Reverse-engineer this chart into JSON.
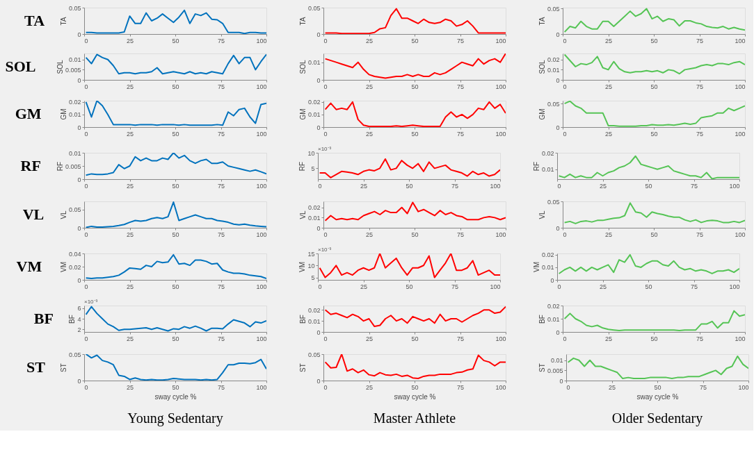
{
  "chart_data": [
    {
      "type": "line",
      "title": "TA",
      "ylabel": "TA",
      "color": "#0072bd",
      "xlim": [
        0,
        100
      ],
      "xticks": [
        0,
        25,
        50,
        75,
        100
      ],
      "ylim": [
        0,
        0.05
      ],
      "yticks": [
        0,
        0.05
      ],
      "x": [
        1,
        4,
        7,
        10,
        13,
        16,
        19,
        22,
        25,
        28,
        31,
        34,
        37,
        40,
        43,
        46,
        49,
        52,
        55,
        58,
        61,
        64,
        67,
        70,
        73,
        76,
        79,
        82,
        85,
        88,
        91,
        94,
        97,
        100
      ],
      "values": [
        0.003,
        0.003,
        0.002,
        0.002,
        0.002,
        0.002,
        0.002,
        0.004,
        0.034,
        0.02,
        0.02,
        0.04,
        0.025,
        0.03,
        0.038,
        0.03,
        0.022,
        0.032,
        0.045,
        0.02,
        0.038,
        0.035,
        0.04,
        0.028,
        0.027,
        0.02,
        0.003,
        0.003,
        0.003,
        0.001,
        0.003,
        0.003,
        0.002,
        0.002
      ]
    },
    {
      "type": "line",
      "ylabel": "TA",
      "color": "#ff0000",
      "xlim": [
        0,
        100
      ],
      "xticks": [
        0,
        25,
        50,
        75,
        100
      ],
      "ylim": [
        0,
        0.05
      ],
      "yticks": [
        0,
        0.05
      ],
      "x": [
        1,
        4,
        7,
        10,
        13,
        16,
        19,
        22,
        25,
        28,
        31,
        34,
        37,
        40,
        43,
        46,
        49,
        52,
        55,
        58,
        61,
        64,
        67,
        70,
        73,
        76,
        79,
        82,
        85,
        88,
        91,
        94,
        97,
        100
      ],
      "values": [
        0.002,
        0.002,
        0.002,
        0.001,
        0.001,
        0.001,
        0.001,
        0.001,
        0.001,
        0.003,
        0.01,
        0.012,
        0.035,
        0.048,
        0.03,
        0.03,
        0.025,
        0.02,
        0.028,
        0.022,
        0.02,
        0.022,
        0.028,
        0.025,
        0.015,
        0.018,
        0.025,
        0.015,
        0.002,
        0.002,
        0.002,
        0.002,
        0.002,
        0.002
      ]
    },
    {
      "type": "line",
      "ylabel": "TA",
      "color": "#55c455",
      "xlim": [
        0,
        100
      ],
      "xticks": [
        0,
        25,
        50,
        75,
        100
      ],
      "ylim": [
        0,
        0.052
      ],
      "yticks": [
        0,
        0.05
      ],
      "x": [
        1,
        4,
        7,
        10,
        13,
        16,
        19,
        22,
        25,
        28,
        31,
        34,
        37,
        40,
        43,
        46,
        49,
        52,
        55,
        58,
        61,
        64,
        67,
        70,
        73,
        76,
        79,
        82,
        85,
        88,
        91,
        94,
        97,
        100
      ],
      "values": [
        0.004,
        0.015,
        0.012,
        0.025,
        0.015,
        0.01,
        0.01,
        0.025,
        0.025,
        0.015,
        0.025,
        0.035,
        0.045,
        0.035,
        0.04,
        0.05,
        0.03,
        0.035,
        0.025,
        0.03,
        0.028,
        0.016,
        0.026,
        0.026,
        0.022,
        0.02,
        0.015,
        0.013,
        0.012,
        0.015,
        0.01,
        0.013,
        0.01,
        0.008
      ]
    },
    {
      "type": "line",
      "title": "SOL",
      "ylabel": "SOL",
      "color": "#0072bd",
      "xlim": [
        0,
        100
      ],
      "xticks": [
        0,
        25,
        50,
        75,
        100
      ],
      "ylim": [
        0,
        0.013
      ],
      "yticks": [
        0,
        0.005,
        0.01
      ],
      "x": [
        1,
        4,
        7,
        10,
        13,
        16,
        19,
        22,
        25,
        28,
        31,
        34,
        37,
        40,
        43,
        46,
        49,
        52,
        55,
        58,
        61,
        64,
        67,
        70,
        73,
        76,
        79,
        82,
        85,
        88,
        91,
        94,
        97,
        100
      ],
      "values": [
        0.011,
        0.008,
        0.0125,
        0.011,
        0.01,
        0.007,
        0.003,
        0.0035,
        0.0035,
        0.003,
        0.0035,
        0.0035,
        0.004,
        0.006,
        0.003,
        0.0035,
        0.004,
        0.0035,
        0.003,
        0.004,
        0.003,
        0.0035,
        0.003,
        0.004,
        0.0035,
        0.003,
        0.008,
        0.012,
        0.008,
        0.011,
        0.011,
        0.005,
        0.009,
        0.0125
      ]
    },
    {
      "type": "line",
      "ylabel": "SOL",
      "color": "#ff0000",
      "xlim": [
        0,
        100
      ],
      "xticks": [
        0,
        25,
        50,
        75,
        100
      ],
      "ylim": [
        0,
        0.015
      ],
      "yticks": [
        0,
        0.01
      ],
      "x": [
        1,
        4,
        7,
        10,
        13,
        16,
        19,
        22,
        25,
        28,
        31,
        34,
        37,
        40,
        43,
        46,
        49,
        52,
        55,
        58,
        61,
        64,
        67,
        70,
        73,
        76,
        79,
        82,
        85,
        88,
        91,
        94,
        97,
        100
      ],
      "values": [
        0.012,
        0.011,
        0.01,
        0.009,
        0.008,
        0.007,
        0.01,
        0.006,
        0.003,
        0.002,
        0.0015,
        0.001,
        0.0015,
        0.002,
        0.002,
        0.003,
        0.002,
        0.003,
        0.002,
        0.002,
        0.004,
        0.003,
        0.004,
        0.006,
        0.008,
        0.01,
        0.009,
        0.008,
        0.012,
        0.009,
        0.011,
        0.012,
        0.01,
        0.015
      ]
    },
    {
      "type": "line",
      "ylabel": "SOL",
      "color": "#55c455",
      "xlim": [
        0,
        100
      ],
      "xticks": [
        0,
        25,
        50,
        75,
        100
      ],
      "ylim": [
        0,
        0.026
      ],
      "yticks": [
        0,
        0.01,
        0.02
      ],
      "x": [
        1,
        4,
        7,
        10,
        13,
        16,
        19,
        22,
        25,
        28,
        31,
        34,
        37,
        40,
        43,
        46,
        49,
        52,
        55,
        58,
        61,
        64,
        67,
        70,
        73,
        76,
        79,
        82,
        85,
        88,
        91,
        94,
        97,
        100
      ],
      "values": [
        0.025,
        0.019,
        0.013,
        0.016,
        0.015,
        0.017,
        0.023,
        0.012,
        0.01,
        0.018,
        0.011,
        0.008,
        0.007,
        0.008,
        0.008,
        0.009,
        0.008,
        0.009,
        0.007,
        0.01,
        0.009,
        0.006,
        0.01,
        0.011,
        0.012,
        0.014,
        0.015,
        0.014,
        0.016,
        0.016,
        0.015,
        0.017,
        0.018,
        0.015
      ]
    },
    {
      "type": "line",
      "title": "GM",
      "ylabel": "GM",
      "color": "#0072bd",
      "xlim": [
        0,
        100
      ],
      "xticks": [
        0,
        25,
        50,
        75,
        100
      ],
      "ylim": [
        0,
        0.021
      ],
      "yticks": [
        0,
        0.01,
        0.02
      ],
      "x": [
        1,
        4,
        7,
        10,
        13,
        16,
        19,
        22,
        25,
        28,
        31,
        34,
        37,
        40,
        43,
        46,
        49,
        52,
        55,
        58,
        61,
        64,
        67,
        70,
        73,
        76,
        79,
        82,
        85,
        88,
        91,
        94,
        97,
        100
      ],
      "values": [
        0.02,
        0.008,
        0.021,
        0.017,
        0.01,
        0.002,
        0.002,
        0.002,
        0.002,
        0.0015,
        0.002,
        0.002,
        0.002,
        0.0015,
        0.002,
        0.002,
        0.002,
        0.0015,
        0.002,
        0.0015,
        0.0015,
        0.0015,
        0.0015,
        0.0015,
        0.002,
        0.0015,
        0.012,
        0.009,
        0.014,
        0.015,
        0.008,
        0.003,
        0.018,
        0.019
      ]
    },
    {
      "type": "line",
      "ylabel": "GM",
      "color": "#ff0000",
      "xlim": [
        0,
        100
      ],
      "xticks": [
        0,
        25,
        50,
        75,
        100
      ],
      "ylim": [
        0,
        0.021
      ],
      "yticks": [
        0,
        0.01,
        0.02
      ],
      "x": [
        1,
        4,
        7,
        10,
        13,
        16,
        19,
        22,
        25,
        28,
        31,
        34,
        37,
        40,
        43,
        46,
        49,
        52,
        55,
        58,
        61,
        64,
        67,
        70,
        73,
        76,
        79,
        82,
        85,
        88,
        91,
        94,
        97,
        100
      ],
      "values": [
        0.014,
        0.019,
        0.014,
        0.015,
        0.014,
        0.02,
        0.006,
        0.0015,
        0.0005,
        0.0005,
        0.0005,
        0.0005,
        0.0005,
        0.001,
        0.0005,
        0.001,
        0.0015,
        0.001,
        0.0005,
        0.0005,
        0.0005,
        0.0005,
        0.008,
        0.012,
        0.008,
        0.01,
        0.007,
        0.01,
        0.015,
        0.014,
        0.02,
        0.015,
        0.018,
        0.011
      ]
    },
    {
      "type": "line",
      "ylabel": "GM",
      "color": "#55c455",
      "xlim": [
        0,
        100
      ],
      "xticks": [
        0,
        25,
        50,
        75,
        100
      ],
      "ylim": [
        0,
        0.056
      ],
      "yticks": [
        0,
        0.05
      ],
      "x": [
        1,
        4,
        7,
        10,
        13,
        16,
        19,
        22,
        25,
        28,
        31,
        34,
        37,
        40,
        43,
        46,
        49,
        52,
        55,
        58,
        61,
        64,
        67,
        70,
        73,
        76,
        79,
        82,
        85,
        88,
        91,
        94,
        97,
        100
      ],
      "values": [
        0.05,
        0.055,
        0.045,
        0.04,
        0.03,
        0.03,
        0.03,
        0.03,
        0.003,
        0.003,
        0.002,
        0.002,
        0.002,
        0.002,
        0.003,
        0.003,
        0.005,
        0.004,
        0.004,
        0.005,
        0.004,
        0.006,
        0.008,
        0.006,
        0.008,
        0.02,
        0.022,
        0.024,
        0.03,
        0.03,
        0.04,
        0.035,
        0.04,
        0.045
      ]
    },
    {
      "type": "line",
      "title": "RF",
      "ylabel": "RF",
      "color": "#0072bd",
      "xlim": [
        0,
        100
      ],
      "xticks": [
        0,
        25,
        50,
        75,
        100
      ],
      "ylim": [
        0,
        0.01
      ],
      "yticks": [
        0,
        0.005,
        0.01
      ],
      "x": [
        1,
        4,
        7,
        10,
        13,
        16,
        19,
        22,
        25,
        28,
        31,
        34,
        37,
        40,
        43,
        46,
        49,
        52,
        55,
        58,
        61,
        64,
        67,
        70,
        73,
        76,
        79,
        82,
        85,
        88,
        91,
        94,
        97,
        100
      ],
      "values": [
        0.0015,
        0.002,
        0.0018,
        0.0018,
        0.002,
        0.0025,
        0.0055,
        0.004,
        0.005,
        0.0085,
        0.007,
        0.008,
        0.007,
        0.007,
        0.008,
        0.0075,
        0.01,
        0.008,
        0.009,
        0.007,
        0.006,
        0.007,
        0.0075,
        0.006,
        0.006,
        0.0065,
        0.005,
        0.0045,
        0.004,
        0.0035,
        0.003,
        0.0035,
        0.0028,
        0.002
      ]
    },
    {
      "type": "line",
      "ylabel": "RF",
      "color": "#ff0000",
      "annotations": [
        "×10⁻³"
      ],
      "xlim": [
        0,
        100
      ],
      "xticks": [
        0,
        25,
        50,
        75,
        100
      ],
      "ylim": [
        1.5,
        10
      ],
      "yticks": [
        5,
        10
      ],
      "x": [
        1,
        4,
        7,
        10,
        13,
        16,
        19,
        22,
        25,
        28,
        31,
        34,
        37,
        40,
        43,
        46,
        49,
        52,
        55,
        58,
        61,
        64,
        67,
        70,
        73,
        76,
        79,
        82,
        85,
        88,
        91,
        94,
        97,
        100
      ],
      "values": [
        3.5,
        3.5,
        2,
        3,
        4,
        3.8,
        3.5,
        3,
        4,
        4.5,
        4.2,
        5,
        8,
        4.5,
        5,
        7.5,
        6,
        5,
        6.5,
        4,
        7,
        5,
        5.5,
        6,
        4.5,
        4,
        3.5,
        2.5,
        4,
        3,
        3.5,
        2.5,
        3,
        4.5
      ]
    },
    {
      "type": "line",
      "ylabel": "RF",
      "color": "#55c455",
      "xlim": [
        0,
        100
      ],
      "xticks": [
        0,
        25,
        50,
        75,
        100
      ],
      "ylim": [
        0.004,
        0.02
      ],
      "yticks": [
        0.01,
        0.02
      ],
      "x": [
        1,
        4,
        7,
        10,
        13,
        16,
        19,
        22,
        25,
        28,
        31,
        34,
        37,
        40,
        43,
        46,
        49,
        52,
        55,
        58,
        61,
        64,
        67,
        70,
        73,
        76,
        79,
        82,
        85,
        88,
        91,
        94,
        97,
        100
      ],
      "values": [
        0.006,
        0.005,
        0.007,
        0.005,
        0.006,
        0.005,
        0.005,
        0.008,
        0.006,
        0.008,
        0.009,
        0.011,
        0.012,
        0.014,
        0.018,
        0.013,
        0.012,
        0.011,
        0.01,
        0.011,
        0.012,
        0.009,
        0.008,
        0.007,
        0.006,
        0.006,
        0.005,
        0.008,
        0.0042,
        0.005,
        0.005,
        0.005,
        0.005,
        0.005
      ]
    },
    {
      "type": "line",
      "title": "VL",
      "ylabel": "VL",
      "color": "#0072bd",
      "xlim": [
        0,
        100
      ],
      "xticks": [
        0,
        25,
        50,
        75,
        100
      ],
      "ylim": [
        0,
        0.072
      ],
      "yticks": [
        0,
        0.05
      ],
      "x": [
        1,
        4,
        7,
        10,
        13,
        16,
        19,
        22,
        25,
        28,
        31,
        34,
        37,
        40,
        43,
        46,
        49,
        52,
        55,
        58,
        61,
        64,
        67,
        70,
        73,
        76,
        79,
        82,
        85,
        88,
        91,
        94,
        97,
        100
      ],
      "values": [
        0.001,
        0.004,
        0.002,
        0.002,
        0.003,
        0.004,
        0.006,
        0.009,
        0.015,
        0.02,
        0.018,
        0.02,
        0.025,
        0.028,
        0.025,
        0.03,
        0.07,
        0.02,
        0.025,
        0.03,
        0.035,
        0.03,
        0.025,
        0.025,
        0.02,
        0.018,
        0.015,
        0.01,
        0.008,
        0.01,
        0.007,
        0.005,
        0.004,
        0.003
      ]
    },
    {
      "type": "line",
      "ylabel": "VL",
      "color": "#ff0000",
      "xlim": [
        0,
        100
      ],
      "xticks": [
        0,
        25,
        50,
        75,
        100
      ],
      "ylim": [
        0,
        0.026
      ],
      "yticks": [
        0,
        0.01,
        0.02
      ],
      "x": [
        1,
        4,
        7,
        10,
        13,
        16,
        19,
        22,
        25,
        28,
        31,
        34,
        37,
        40,
        43,
        46,
        49,
        52,
        55,
        58,
        61,
        64,
        67,
        70,
        73,
        76,
        79,
        82,
        85,
        88,
        91,
        94,
        97,
        100
      ],
      "values": [
        0.007,
        0.012,
        0.008,
        0.009,
        0.008,
        0.009,
        0.008,
        0.012,
        0.014,
        0.016,
        0.013,
        0.017,
        0.015,
        0.015,
        0.02,
        0.014,
        0.025,
        0.016,
        0.018,
        0.015,
        0.012,
        0.017,
        0.013,
        0.015,
        0.012,
        0.011,
        0.008,
        0.008,
        0.008,
        0.01,
        0.011,
        0.01,
        0.008,
        0.01
      ]
    },
    {
      "type": "line",
      "ylabel": "VL",
      "color": "#55c455",
      "xlim": [
        0,
        100
      ],
      "xticks": [
        0,
        25,
        50,
        75,
        100
      ],
      "ylim": [
        0,
        0.05
      ],
      "yticks": [
        0,
        0.05
      ],
      "x": [
        1,
        4,
        7,
        10,
        13,
        16,
        19,
        22,
        25,
        28,
        31,
        34,
        37,
        40,
        43,
        46,
        49,
        52,
        55,
        58,
        61,
        64,
        67,
        70,
        73,
        76,
        79,
        82,
        85,
        88,
        91,
        94,
        97,
        100
      ],
      "values": [
        0.01,
        0.012,
        0.008,
        0.012,
        0.013,
        0.011,
        0.014,
        0.014,
        0.016,
        0.018,
        0.019,
        0.023,
        0.047,
        0.03,
        0.028,
        0.02,
        0.03,
        0.027,
        0.025,
        0.022,
        0.02,
        0.02,
        0.015,
        0.012,
        0.015,
        0.01,
        0.013,
        0.014,
        0.013,
        0.01,
        0.01,
        0.012,
        0.01,
        0.014
      ]
    },
    {
      "type": "line",
      "title": "VM",
      "ylabel": "VM",
      "color": "#0072bd",
      "xlim": [
        0,
        100
      ],
      "xticks": [
        0,
        25,
        50,
        75,
        100
      ],
      "ylim": [
        0,
        0.04
      ],
      "yticks": [
        0,
        0.02,
        0.04
      ],
      "x": [
        1,
        4,
        7,
        10,
        13,
        16,
        19,
        22,
        25,
        28,
        31,
        34,
        37,
        40,
        43,
        46,
        49,
        52,
        55,
        58,
        61,
        64,
        67,
        70,
        73,
        76,
        79,
        82,
        85,
        88,
        91,
        94,
        97,
        100
      ],
      "values": [
        0.003,
        0.002,
        0.003,
        0.003,
        0.004,
        0.005,
        0.007,
        0.012,
        0.018,
        0.017,
        0.016,
        0.022,
        0.02,
        0.028,
        0.026,
        0.027,
        0.038,
        0.024,
        0.025,
        0.022,
        0.03,
        0.03,
        0.028,
        0.024,
        0.025,
        0.015,
        0.012,
        0.01,
        0.01,
        0.009,
        0.007,
        0.006,
        0.005,
        0.002
      ]
    },
    {
      "type": "line",
      "ylabel": "VM",
      "color": "#ff0000",
      "annotations": [
        "×10⁻³"
      ],
      "xlim": [
        0,
        100
      ],
      "xticks": [
        0,
        25,
        50,
        75,
        100
      ],
      "ylim": [
        4,
        15
      ],
      "yticks": [
        5,
        10,
        15
      ],
      "x": [
        1,
        4,
        7,
        10,
        13,
        16,
        19,
        22,
        25,
        28,
        31,
        34,
        37,
        40,
        43,
        46,
        49,
        52,
        55,
        58,
        61,
        64,
        67,
        70,
        73,
        76,
        79,
        82,
        85,
        88,
        91,
        94,
        97,
        100
      ],
      "values": [
        9,
        5,
        7,
        10,
        6,
        7,
        6,
        8,
        9,
        8,
        9,
        15,
        9,
        11,
        13,
        9,
        6,
        9,
        9,
        10,
        14,
        5,
        8,
        11,
        15,
        8,
        8,
        9,
        12,
        6,
        7,
        8,
        6,
        6
      ]
    },
    {
      "type": "line",
      "ylabel": "VM",
      "color": "#55c455",
      "xlim": [
        0,
        100
      ],
      "xticks": [
        0,
        25,
        50,
        75,
        100
      ],
      "ylim": [
        0,
        0.021
      ],
      "yticks": [
        0,
        0.01,
        0.02
      ],
      "x": [
        1,
        4,
        7,
        10,
        13,
        16,
        19,
        22,
        25,
        28,
        31,
        34,
        37,
        40,
        43,
        46,
        49,
        52,
        55,
        58,
        61,
        64,
        67,
        70,
        73,
        76,
        79,
        82,
        85,
        88,
        91,
        94,
        97,
        100
      ],
      "values": [
        0.005,
        0.008,
        0.01,
        0.007,
        0.01,
        0.007,
        0.01,
        0.008,
        0.01,
        0.012,
        0.006,
        0.016,
        0.014,
        0.02,
        0.011,
        0.01,
        0.013,
        0.015,
        0.015,
        0.012,
        0.011,
        0.015,
        0.01,
        0.008,
        0.009,
        0.007,
        0.008,
        0.007,
        0.005,
        0.007,
        0.007,
        0.008,
        0.006,
        0.009
      ]
    },
    {
      "type": "line",
      "title": "BF",
      "ylabel": "BF",
      "color": "#0072bd",
      "annotations": [
        "×10⁻³"
      ],
      "xlim": [
        0,
        100
      ],
      "xticks": [
        0,
        25,
        50,
        75,
        100
      ],
      "ylim": [
        1.5,
        6.5
      ],
      "yticks": [
        2,
        4,
        6
      ],
      "x": [
        1,
        4,
        7,
        10,
        13,
        16,
        19,
        22,
        25,
        28,
        31,
        34,
        37,
        40,
        43,
        46,
        49,
        52,
        55,
        58,
        61,
        64,
        67,
        70,
        73,
        76,
        79,
        82,
        85,
        88,
        91,
        94,
        97,
        100
      ],
      "values": [
        4.8,
        6.3,
        5,
        4,
        3,
        2.5,
        1.8,
        2,
        2,
        2.1,
        2.2,
        2.3,
        2,
        2.3,
        2,
        1.7,
        2.1,
        2,
        2.5,
        2.2,
        2.6,
        2.2,
        1.7,
        2.2,
        2.2,
        2.1,
        3,
        3.8,
        3.5,
        3.2,
        2.5,
        3.4,
        3.2,
        3.6
      ]
    },
    {
      "type": "line",
      "ylabel": "BF",
      "color": "#ff0000",
      "xlim": [
        0,
        100
      ],
      "xticks": [
        0,
        25,
        50,
        75,
        100
      ],
      "ylim": [
        0,
        0.024
      ],
      "yticks": [
        0,
        0.01,
        0.02
      ],
      "x": [
        1,
        4,
        7,
        10,
        13,
        16,
        19,
        22,
        25,
        28,
        31,
        34,
        37,
        40,
        43,
        46,
        49,
        52,
        55,
        58,
        61,
        64,
        67,
        70,
        73,
        76,
        79,
        82,
        85,
        88,
        91,
        94,
        97,
        100
      ],
      "values": [
        0.02,
        0.016,
        0.017,
        0.015,
        0.013,
        0.016,
        0.014,
        0.01,
        0.012,
        0.005,
        0.006,
        0.012,
        0.015,
        0.01,
        0.012,
        0.008,
        0.014,
        0.012,
        0.01,
        0.012,
        0.008,
        0.016,
        0.01,
        0.012,
        0.012,
        0.009,
        0.012,
        0.015,
        0.017,
        0.02,
        0.02,
        0.017,
        0.018,
        0.023
      ]
    },
    {
      "type": "line",
      "ylabel": "BF",
      "color": "#55c455",
      "xlim": [
        0,
        100
      ],
      "xticks": [
        0,
        25,
        50,
        75,
        100
      ],
      "ylim": [
        0,
        0.02
      ],
      "yticks": [
        0,
        0.01,
        0.02
      ],
      "x": [
        1,
        4,
        7,
        10,
        13,
        16,
        19,
        22,
        25,
        28,
        31,
        34,
        37,
        40,
        43,
        46,
        49,
        52,
        55,
        58,
        61,
        64,
        67,
        70,
        73,
        76,
        79,
        82,
        85,
        88,
        91,
        94,
        97,
        100
      ],
      "values": [
        0.01,
        0.014,
        0.01,
        0.008,
        0.005,
        0.004,
        0.005,
        0.003,
        0.002,
        0.0015,
        0.001,
        0.0015,
        0.0015,
        0.0015,
        0.0015,
        0.0015,
        0.0015,
        0.0015,
        0.0015,
        0.0015,
        0.0015,
        0.001,
        0.0015,
        0.0015,
        0.0015,
        0.006,
        0.006,
        0.008,
        0.003,
        0.007,
        0.007,
        0.016,
        0.012,
        0.013
      ]
    },
    {
      "type": "line",
      "title": "ST",
      "ylabel": "ST",
      "xlabel": "sway cycle %",
      "annotations": [
        "Young Sedentary"
      ],
      "color": "#0072bd",
      "xlim": [
        0,
        100
      ],
      "xticks": [
        0,
        25,
        50,
        75,
        100
      ],
      "ylim": [
        0,
        0.05
      ],
      "yticks": [
        0,
        0.05
      ],
      "x": [
        1,
        4,
        7,
        10,
        13,
        16,
        19,
        22,
        25,
        28,
        31,
        34,
        37,
        40,
        43,
        46,
        49,
        52,
        55,
        58,
        61,
        64,
        67,
        70,
        73,
        76,
        79,
        82,
        85,
        88,
        91,
        94,
        97,
        100
      ],
      "values": [
        0.05,
        0.043,
        0.048,
        0.038,
        0.035,
        0.03,
        0.01,
        0.008,
        0.002,
        0.005,
        0.002,
        0.001,
        0.002,
        0.001,
        0.001,
        0.002,
        0.004,
        0.003,
        0.002,
        0.002,
        0.002,
        0.001,
        0.002,
        0.001,
        0.002,
        0.015,
        0.03,
        0.03,
        0.033,
        0.033,
        0.032,
        0.034,
        0.04,
        0.022
      ]
    },
    {
      "type": "line",
      "ylabel": "ST",
      "xlabel": "sway cycle %",
      "annotations": [
        "Master Athlete"
      ],
      "color": "#ff0000",
      "xlim": [
        0,
        100
      ],
      "xticks": [
        0,
        25,
        50,
        75,
        100
      ],
      "ylim": [
        0,
        0.05
      ],
      "yticks": [
        0,
        0.05
      ],
      "x": [
        1,
        4,
        7,
        10,
        13,
        16,
        19,
        22,
        25,
        28,
        31,
        34,
        37,
        40,
        43,
        46,
        49,
        52,
        55,
        58,
        61,
        64,
        67,
        70,
        73,
        76,
        79,
        82,
        85,
        88,
        91,
        94,
        97,
        100
      ],
      "values": [
        0.035,
        0.024,
        0.025,
        0.05,
        0.018,
        0.022,
        0.015,
        0.02,
        0.011,
        0.009,
        0.015,
        0.011,
        0.01,
        0.012,
        0.008,
        0.01,
        0.005,
        0.004,
        0.008,
        0.01,
        0.01,
        0.012,
        0.012,
        0.012,
        0.015,
        0.016,
        0.02,
        0.022,
        0.048,
        0.038,
        0.035,
        0.028,
        0.035,
        0.035
      ]
    },
    {
      "type": "line",
      "ylabel": "ST",
      "xlabel": "sway cycle %",
      "annotations": [
        "Older Sedentary"
      ],
      "color": "#55c455",
      "xlim": [
        0,
        100
      ],
      "xticks": [
        0,
        25,
        50,
        75,
        100
      ],
      "ylim": [
        0,
        0.013
      ],
      "yticks": [
        0,
        0.005,
        0.01
      ],
      "x": [
        1,
        4,
        7,
        10,
        13,
        16,
        19,
        22,
        25,
        28,
        31,
        34,
        37,
        40,
        43,
        46,
        49,
        52,
        55,
        58,
        61,
        64,
        67,
        70,
        73,
        76,
        79,
        82,
        85,
        88,
        91,
        94,
        97,
        100
      ],
      "values": [
        0.009,
        0.011,
        0.01,
        0.007,
        0.01,
        0.007,
        0.007,
        0.006,
        0.005,
        0.004,
        0.001,
        0.0015,
        0.001,
        0.001,
        0.001,
        0.0015,
        0.0015,
        0.0015,
        0.0015,
        0.001,
        0.0015,
        0.0015,
        0.002,
        0.002,
        0.002,
        0.003,
        0.004,
        0.005,
        0.003,
        0.006,
        0.007,
        0.012,
        0.008,
        0.006
      ]
    }
  ]
}
